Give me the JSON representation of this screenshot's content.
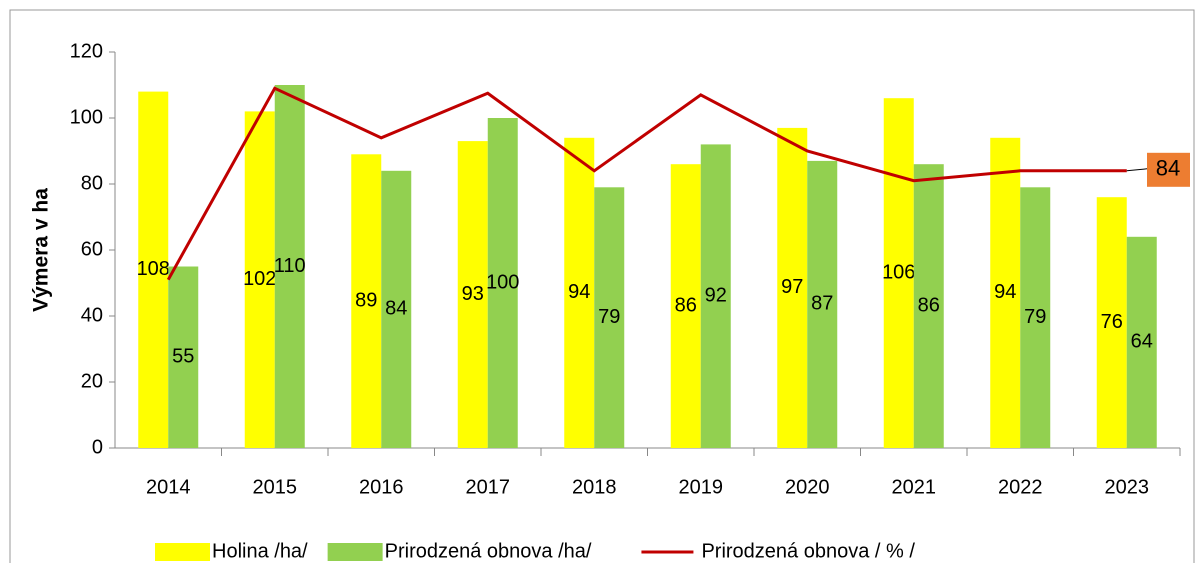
{
  "chart_data": {
    "type": "bar",
    "y_label": "Výmera v ha",
    "categories": [
      "2014",
      "2015",
      "2016",
      "2017",
      "2018",
      "2019",
      "2020",
      "2021",
      "2022",
      "2023"
    ],
    "series": [
      {
        "name": "Holina /ha/",
        "color": "#ffff00",
        "values": [
          108,
          102,
          89,
          93,
          94,
          86,
          97,
          106,
          94,
          76
        ]
      },
      {
        "name": "Prirodzená obnova /ha/",
        "color": "#92d050",
        "values": [
          55,
          110,
          84,
          100,
          79,
          92,
          87,
          86,
          79,
          64
        ]
      },
      {
        "name": "Prirodzená obnova / % /",
        "type": "line",
        "color": "#c00000",
        "values": [
          51,
          109,
          94,
          107.5,
          84,
          107,
          90,
          81,
          84,
          84
        ],
        "value_labels": [
          null,
          null,
          null,
          null,
          null,
          null,
          null,
          null,
          null,
          "84"
        ]
      }
    ],
    "ylim": [
      0,
      120
    ],
    "yticks": [
      0,
      20,
      40,
      60,
      80,
      100,
      120
    ],
    "legend": "bottom"
  }
}
